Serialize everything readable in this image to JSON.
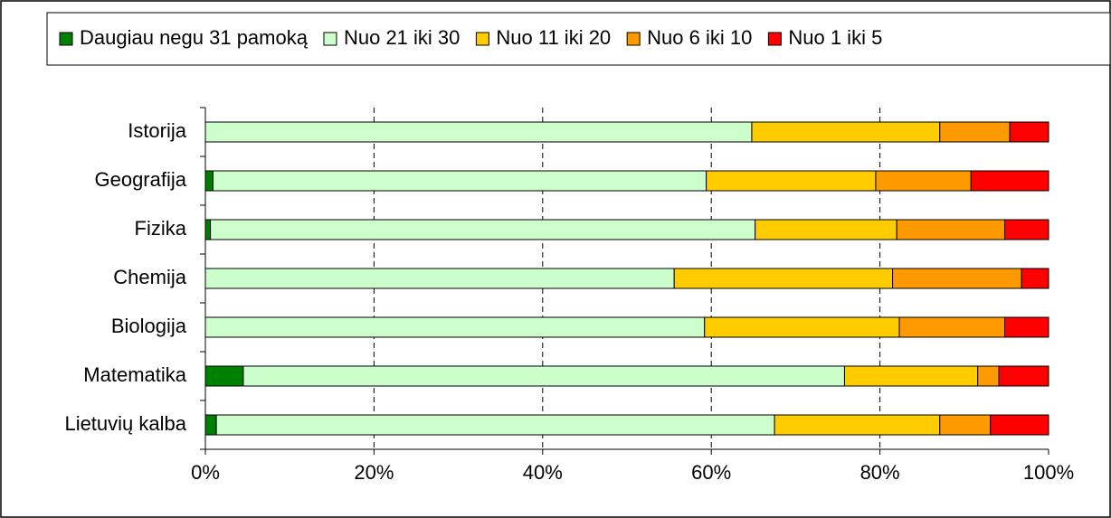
{
  "chart_data": {
    "type": "stacked_barh",
    "categories": [
      "Istorija",
      "Geografija",
      "Fizika",
      "Chemija",
      "Biologija",
      "Matematika",
      "Lietuvių kalba"
    ],
    "series": [
      {
        "name": "Daugiau negu 31 pamoką",
        "color": "#008000",
        "values": [
          0,
          0.9,
          0.6,
          0,
          0,
          4.5,
          1.3
        ]
      },
      {
        "name": "Nuo 21 iki 30",
        "color": "#ccffcc",
        "values": [
          64.8,
          58.5,
          64.6,
          55.6,
          59.2,
          71.3,
          66.2
        ]
      },
      {
        "name": "Nuo 11 iki 20",
        "color": "#ffcc00",
        "values": [
          22.3,
          20.1,
          16.8,
          25.9,
          23.1,
          15.8,
          19.6
        ]
      },
      {
        "name": "Nuo 6 iki 10",
        "color": "#ff9900",
        "values": [
          8.3,
          11.3,
          12.8,
          15.3,
          12.5,
          2.5,
          6.0
        ]
      },
      {
        "name": "Nuo 1 iki 5",
        "color": "#ff0000",
        "values": [
          4.6,
          9.2,
          5.2,
          3.2,
          5.2,
          5.9,
          6.9
        ]
      }
    ],
    "xlim": [
      0,
      100
    ],
    "xticks": [
      {
        "value": 0,
        "label": "0%"
      },
      {
        "value": 20,
        "label": "20%"
      },
      {
        "value": 40,
        "label": "40%"
      },
      {
        "value": 60,
        "label": "60%"
      },
      {
        "value": 80,
        "label": "80%"
      },
      {
        "value": 100,
        "label": "100%"
      }
    ],
    "grid": true,
    "legend": "top"
  }
}
